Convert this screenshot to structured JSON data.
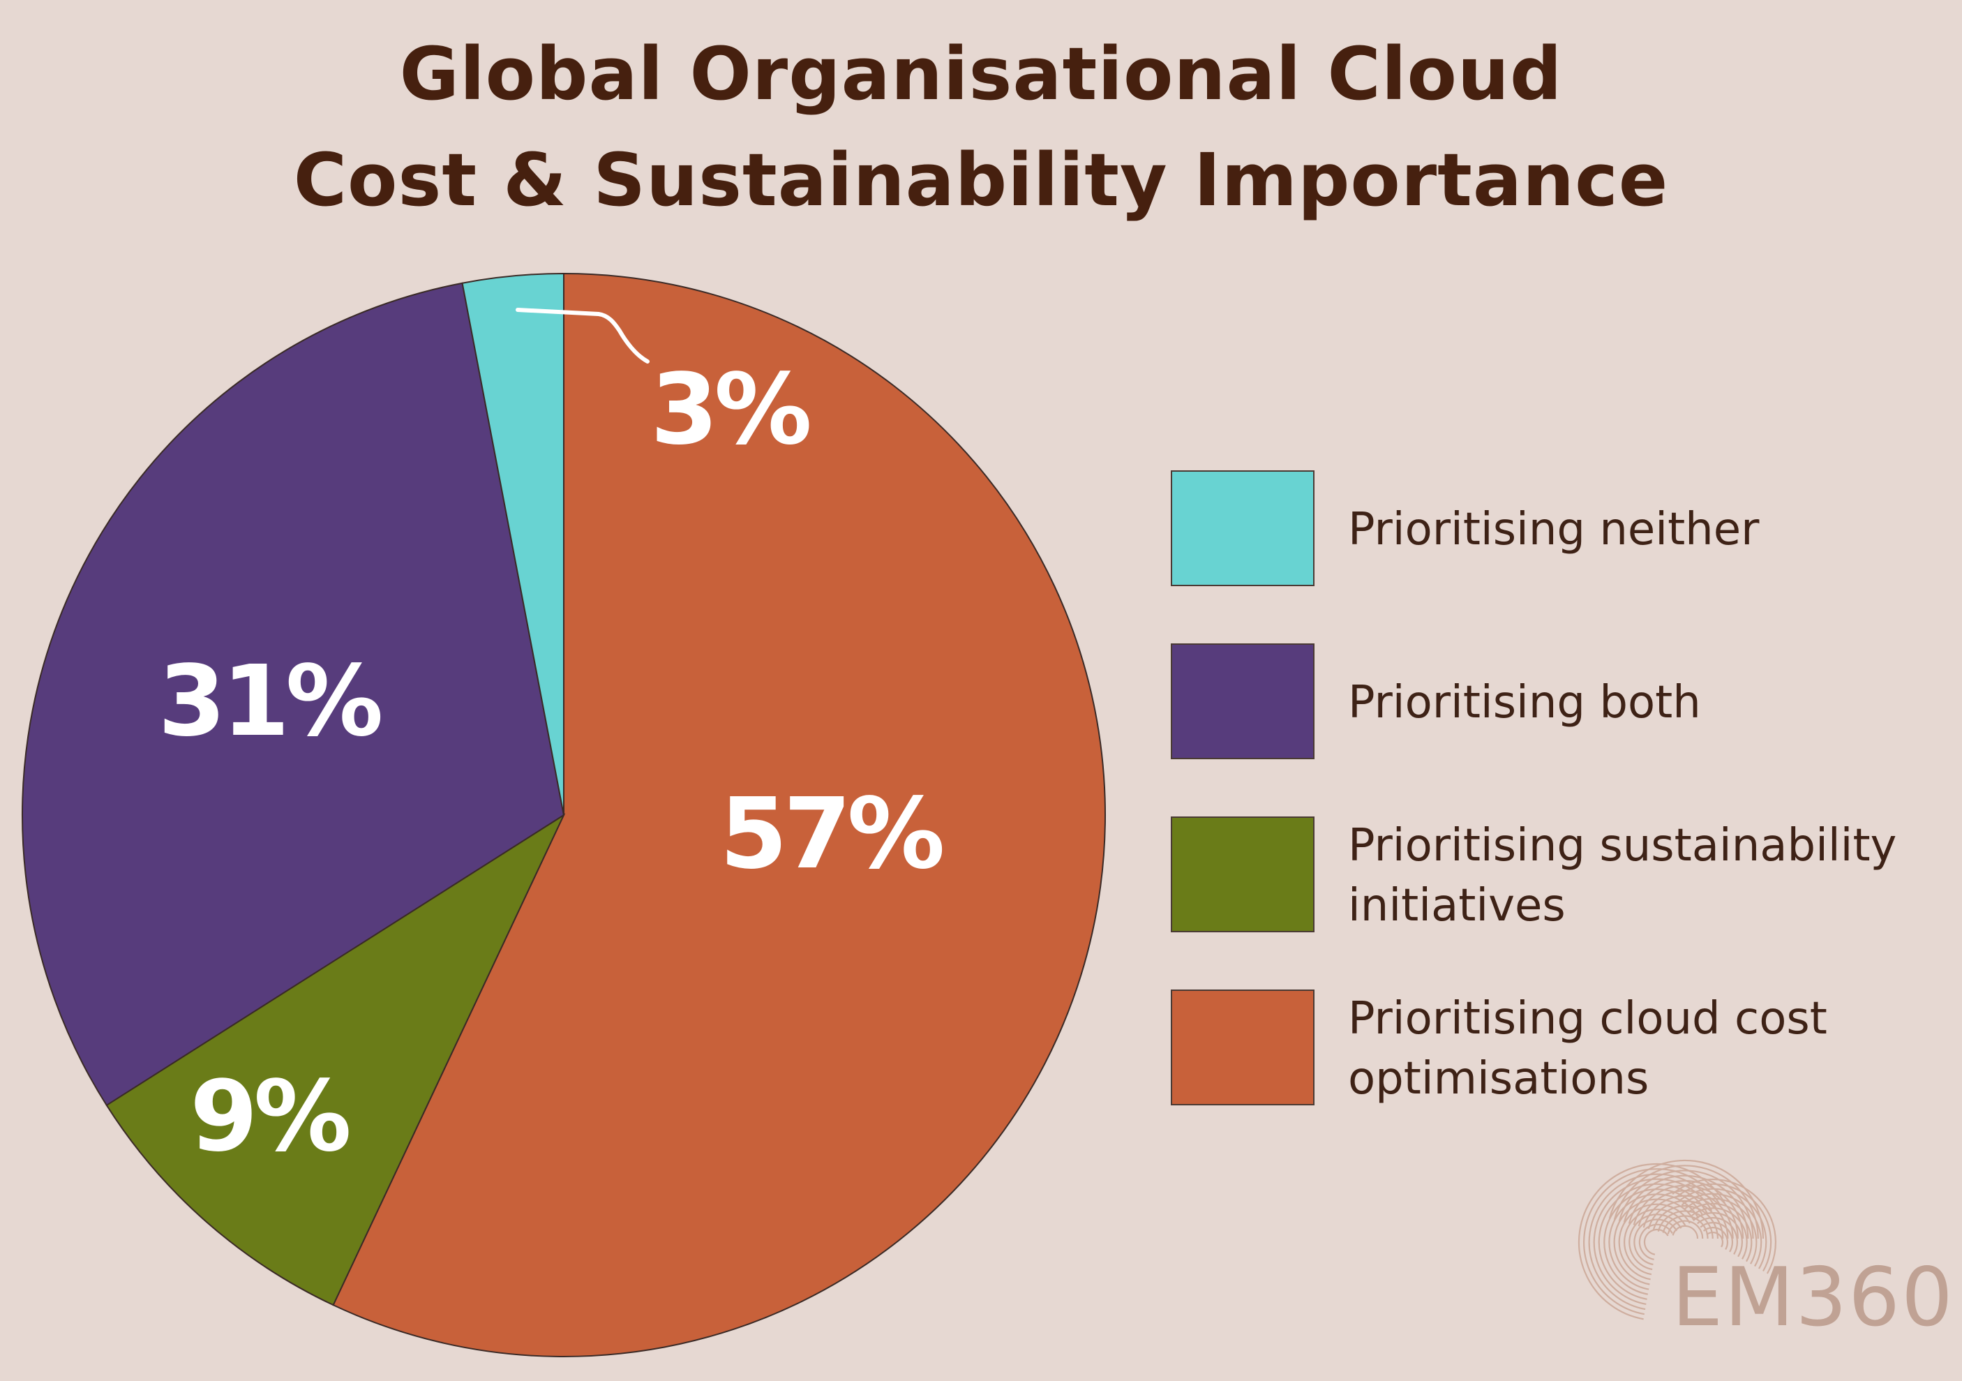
{
  "chart_data": {
    "type": "pie",
    "title": "Global Organisational Cloud Cost & Sustainability Importance",
    "title_lines": [
      "Global Organisational Cloud",
      "Cost & Sustainability Importance"
    ],
    "slices": [
      {
        "name": "Prioritising cloud cost optimisations",
        "value": 57,
        "label": "57%",
        "color": "#c8613a"
      },
      {
        "name": "Prioritising sustainability initiatives",
        "value": 9,
        "label": "9%",
        "color": "#6a7c18"
      },
      {
        "name": "Prioritising both",
        "value": 31,
        "label": "31%",
        "color": "#573c7c"
      },
      {
        "name": "Prioritising neither",
        "value": 3,
        "label": "3%",
        "color": "#68d3d2"
      }
    ],
    "legend": {
      "placement": "right",
      "items": [
        {
          "lines": [
            "Prioritising neither"
          ],
          "color": "#68d3d2"
        },
        {
          "lines": [
            "Prioritising both"
          ],
          "color": "#573c7c"
        },
        {
          "lines": [
            "Prioritising sustainability",
            "initiatives"
          ],
          "color": "#6a7c18"
        },
        {
          "lines": [
            "Prioritising cloud cost",
            "optimisations"
          ],
          "color": "#c8613a"
        }
      ]
    }
  },
  "brand": {
    "logo_icon": "cloud-rings-logo",
    "text": "EM360"
  },
  "colors": {
    "background": "#e6d8d2",
    "title": "#46200f",
    "legend_text": "#3e2216",
    "label": "#ffffff",
    "brand": "#c0a294"
  }
}
